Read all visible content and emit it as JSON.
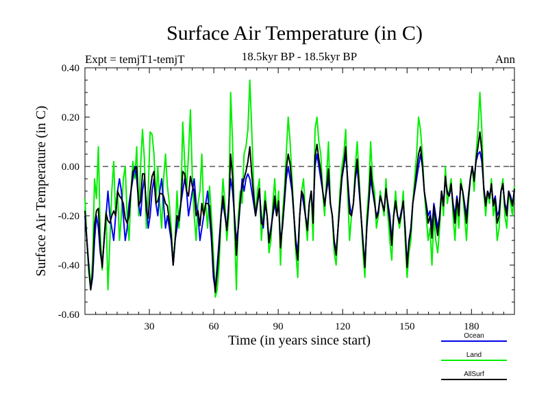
{
  "chart_data": {
    "type": "line",
    "title": "Surface Air Temperature (in C)",
    "subtitle_left": "Expt = temjT1-temjT",
    "subtitle_center": "18.5kyr BP - 18.5kyr BP",
    "subtitle_right": "Ann",
    "xlabel": "Time (in years since start)",
    "ylabel": "Surface Air Temperature (in C)",
    "xlim": [
      0,
      200
    ],
    "ylim": [
      -0.6,
      0.4
    ],
    "xticks": [
      30,
      60,
      90,
      120,
      150,
      180
    ],
    "xtick_labels": [
      "30",
      "60",
      "90",
      "120",
      "150",
      "180"
    ],
    "yticks": [
      -0.6,
      -0.4,
      -0.2,
      0.0,
      0.2,
      0.4
    ],
    "ytick_labels": [
      "-0.60",
      "-0.40",
      "-0.20",
      "0.00",
      "0.20",
      "0.40"
    ],
    "zero_line": "dashed",
    "legend_position": "bottom-right",
    "series": [
      {
        "name": "Land",
        "color": "#00ee00",
        "values": [
          -0.13,
          -0.3,
          -0.43,
          -0.5,
          -0.38,
          -0.05,
          -0.13,
          0.08,
          -0.28,
          -0.42,
          -0.29,
          -0.18,
          -0.5,
          -0.3,
          -0.1,
          0.02,
          -0.2,
          -0.1,
          -0.3,
          -0.2,
          -0.05,
          0.0,
          -0.2,
          -0.3,
          -0.1,
          0.02,
          -0.05,
          0.08,
          -0.2,
          0.0,
          0.15,
          0.03,
          -0.25,
          -0.1,
          0.14,
          0.13,
          0.05,
          -0.15,
          0.0,
          -0.15,
          -0.25,
          -0.05,
          0.05,
          -0.08,
          -0.15,
          -0.25,
          -0.4,
          -0.3,
          -0.1,
          -0.25,
          -0.15,
          0.18,
          0.02,
          -0.1,
          0.05,
          0.23,
          -0.05,
          -0.2,
          -0.3,
          -0.15,
          -0.1,
          0.05,
          -0.2,
          -0.15,
          -0.25,
          -0.08,
          -0.2,
          -0.35,
          -0.53,
          -0.5,
          -0.4,
          -0.2,
          -0.05,
          -0.15,
          -0.3,
          -0.2,
          0.3,
          0.1,
          -0.25,
          -0.5,
          -0.2,
          -0.1,
          -0.15,
          0.05,
          0.08,
          0.15,
          0.35,
          0.15,
          -0.08,
          -0.2,
          -0.1,
          -0.05,
          -0.3,
          -0.2,
          -0.1,
          -0.2,
          -0.35,
          -0.3,
          -0.15,
          -0.05,
          -0.2,
          -0.1,
          -0.4,
          -0.2,
          -0.1,
          0.05,
          0.2,
          0.1,
          -0.05,
          -0.2,
          -0.35,
          -0.45,
          -0.2,
          -0.1,
          -0.05,
          -0.2,
          -0.3,
          -0.15,
          -0.1,
          -0.3,
          0.15,
          0.2,
          0.1,
          0.05,
          -0.1,
          -0.2,
          -0.05,
          0.1,
          -0.15,
          -0.2,
          -0.35,
          -0.4,
          -0.25,
          -0.1,
          0.0,
          0.05,
          0.15,
          -0.1,
          -0.3,
          -0.2,
          -0.15,
          0.0,
          0.1,
          -0.05,
          -0.2,
          -0.35,
          -0.45,
          -0.2,
          -0.1,
          0.1,
          -0.05,
          -0.1,
          -0.25,
          -0.2,
          -0.1,
          -0.15,
          -0.2,
          -0.05,
          -0.2,
          -0.3,
          -0.38,
          -0.2,
          -0.1,
          -0.2,
          -0.25,
          -0.2,
          -0.1,
          -0.3,
          -0.45,
          -0.35,
          -0.3,
          -0.15,
          -0.05,
          0.05,
          0.2,
          0.15,
          0.05,
          -0.1,
          -0.2,
          -0.3,
          -0.25,
          -0.4,
          -0.2,
          -0.3,
          -0.35,
          -0.25,
          -0.1,
          -0.2,
          0.0,
          -0.15,
          -0.1,
          -0.05,
          -0.2,
          -0.3,
          -0.15,
          -0.25,
          -0.05,
          -0.1,
          -0.2,
          -0.3,
          -0.15,
          -0.05,
          0.0,
          -0.1,
          0.05,
          0.15,
          0.3,
          0.15,
          -0.1,
          -0.2,
          -0.1,
          -0.15,
          -0.05,
          -0.2,
          -0.15,
          -0.3,
          -0.25,
          -0.1,
          -0.05,
          -0.2,
          -0.25,
          -0.1,
          -0.15,
          -0.2,
          -0.08
        ]
      },
      {
        "name": "Ocean",
        "color": "#0000ee",
        "values": [
          -0.2,
          -0.3,
          -0.4,
          -0.5,
          -0.45,
          -0.3,
          -0.2,
          -0.25,
          -0.35,
          -0.4,
          -0.3,
          -0.2,
          -0.1,
          -0.2,
          -0.25,
          -0.3,
          -0.2,
          -0.1,
          -0.05,
          -0.1,
          -0.2,
          -0.3,
          -0.25,
          -0.15,
          -0.1,
          -0.05,
          0.0,
          -0.05,
          -0.15,
          -0.2,
          -0.1,
          -0.05,
          -0.15,
          -0.25,
          -0.2,
          -0.1,
          -0.05,
          -0.15,
          -0.2,
          -0.1,
          -0.05,
          -0.15,
          -0.25,
          -0.2,
          -0.25,
          -0.3,
          -0.4,
          -0.3,
          -0.25,
          -0.2,
          -0.15,
          -0.1,
          -0.05,
          -0.1,
          -0.2,
          -0.15,
          -0.1,
          -0.05,
          -0.15,
          -0.2,
          -0.3,
          -0.25,
          -0.2,
          -0.15,
          -0.1,
          -0.2,
          -0.3,
          -0.45,
          -0.5,
          -0.4,
          -0.3,
          -0.2,
          -0.15,
          -0.2,
          -0.25,
          -0.15,
          -0.05,
          -0.1,
          -0.2,
          -0.3,
          -0.25,
          -0.15,
          -0.05,
          -0.1,
          -0.05,
          -0.03,
          -0.05,
          -0.1,
          -0.15,
          -0.2,
          -0.15,
          -0.1,
          -0.2,
          -0.25,
          -0.15,
          -0.2,
          -0.3,
          -0.25,
          -0.2,
          -0.15,
          -0.2,
          -0.15,
          -0.3,
          -0.25,
          -0.15,
          -0.05,
          0.0,
          -0.05,
          -0.1,
          -0.2,
          -0.3,
          -0.35,
          -0.2,
          -0.1,
          -0.15,
          -0.2,
          -0.25,
          -0.15,
          -0.1,
          -0.2,
          0.0,
          0.05,
          0.0,
          -0.05,
          -0.1,
          -0.15,
          -0.1,
          -0.05,
          -0.15,
          -0.2,
          -0.3,
          -0.35,
          -0.25,
          -0.15,
          -0.05,
          0.0,
          0.05,
          -0.05,
          -0.15,
          -0.2,
          -0.15,
          -0.05,
          0.0,
          -0.1,
          -0.2,
          -0.3,
          -0.4,
          -0.25,
          -0.15,
          -0.05,
          -0.1,
          -0.15,
          -0.2,
          -0.18,
          -0.12,
          -0.15,
          -0.18,
          -0.1,
          -0.15,
          -0.2,
          -0.3,
          -0.2,
          -0.15,
          -0.2,
          -0.22,
          -0.18,
          -0.15,
          -0.25,
          -0.4,
          -0.3,
          -0.25,
          -0.15,
          -0.1,
          -0.05,
          0.0,
          0.05,
          0.0,
          -0.1,
          -0.15,
          -0.2,
          -0.18,
          -0.25,
          -0.15,
          -0.2,
          -0.25,
          -0.2,
          -0.1,
          -0.15,
          -0.05,
          -0.1,
          -0.12,
          -0.08,
          -0.15,
          -0.2,
          -0.12,
          -0.18,
          -0.08,
          -0.1,
          -0.15,
          -0.2,
          -0.12,
          -0.05,
          0.0,
          -0.05,
          0.02,
          0.05,
          0.06,
          0.02,
          -0.08,
          -0.15,
          -0.1,
          -0.12,
          -0.08,
          -0.15,
          -0.12,
          -0.2,
          -0.18,
          -0.1,
          -0.08,
          -0.15,
          -0.18,
          -0.1,
          -0.12,
          -0.15,
          -0.1
        ]
      },
      {
        "name": "AllSurf",
        "color": "#000000",
        "values": [
          -0.18,
          -0.3,
          -0.41,
          -0.5,
          -0.43,
          -0.24,
          -0.18,
          -0.17,
          -0.33,
          -0.41,
          -0.3,
          -0.19,
          -0.22,
          -0.23,
          -0.2,
          -0.18,
          -0.2,
          -0.1,
          -0.12,
          -0.13,
          -0.15,
          -0.21,
          -0.23,
          -0.2,
          -0.1,
          -0.02,
          -0.01,
          0.0,
          -0.16,
          -0.14,
          -0.03,
          -0.03,
          -0.18,
          -0.21,
          -0.1,
          -0.04,
          -0.02,
          -0.15,
          -0.14,
          -0.11,
          -0.11,
          -0.12,
          -0.15,
          -0.16,
          -0.22,
          -0.28,
          -0.4,
          -0.3,
          -0.2,
          -0.22,
          -0.15,
          -0.02,
          -0.03,
          -0.1,
          -0.12,
          -0.04,
          -0.08,
          -0.1,
          -0.2,
          -0.18,
          -0.24,
          -0.15,
          -0.2,
          -0.15,
          -0.15,
          -0.16,
          -0.27,
          -0.42,
          -0.51,
          -0.43,
          -0.33,
          -0.2,
          -0.12,
          -0.19,
          -0.26,
          -0.17,
          0.05,
          -0.04,
          -0.21,
          -0.36,
          -0.24,
          -0.14,
          -0.08,
          -0.05,
          -0.02,
          0.02,
          0.08,
          -0.03,
          -0.12,
          -0.2,
          -0.14,
          -0.09,
          -0.23,
          -0.24,
          -0.14,
          -0.2,
          -0.31,
          -0.26,
          -0.19,
          -0.12,
          -0.2,
          -0.14,
          -0.33,
          -0.24,
          -0.14,
          -0.01,
          0.05,
          0.01,
          -0.08,
          -0.2,
          -0.32,
          -0.38,
          -0.2,
          -0.1,
          -0.12,
          -0.2,
          -0.26,
          -0.15,
          -0.1,
          -0.23,
          0.04,
          0.09,
          0.03,
          -0.02,
          -0.1,
          -0.16,
          -0.09,
          -0.01,
          -0.15,
          -0.2,
          -0.31,
          -0.36,
          -0.25,
          -0.14,
          -0.04,
          0.01,
          0.08,
          -0.06,
          -0.19,
          -0.2,
          -0.15,
          -0.04,
          0.03,
          -0.08,
          -0.2,
          -0.31,
          -0.41,
          -0.24,
          -0.14,
          0.0,
          -0.09,
          -0.14,
          -0.21,
          -0.19,
          -0.12,
          -0.15,
          -0.18,
          -0.09,
          -0.16,
          -0.23,
          -0.32,
          -0.2,
          -0.14,
          -0.2,
          -0.23,
          -0.19,
          -0.14,
          -0.26,
          -0.41,
          -0.31,
          -0.26,
          -0.15,
          -0.09,
          -0.02,
          0.05,
          0.08,
          0.01,
          -0.1,
          -0.16,
          -0.23,
          -0.2,
          -0.29,
          -0.16,
          -0.23,
          -0.28,
          -0.21,
          -0.1,
          -0.16,
          -0.04,
          -0.11,
          -0.12,
          -0.07,
          -0.16,
          -0.23,
          -0.13,
          -0.2,
          -0.07,
          -0.1,
          -0.16,
          -0.23,
          -0.13,
          -0.05,
          0.0,
          -0.06,
          0.03,
          0.08,
          0.14,
          0.06,
          -0.09,
          -0.16,
          -0.1,
          -0.13,
          -0.07,
          -0.16,
          -0.13,
          -0.23,
          -0.2,
          -0.1,
          -0.07,
          -0.16,
          -0.2,
          -0.1,
          -0.13,
          -0.16,
          -0.09
        ]
      }
    ],
    "legend": [
      {
        "name": "Ocean",
        "color": "#0000ee"
      },
      {
        "name": "Land",
        "color": "#00ee00"
      },
      {
        "name": "AllSurf",
        "color": "#000000"
      }
    ]
  }
}
